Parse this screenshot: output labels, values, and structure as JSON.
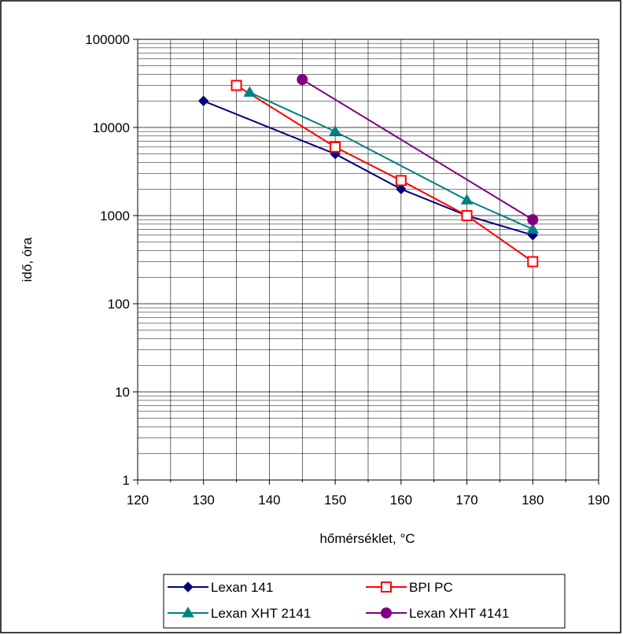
{
  "chart_data": {
    "type": "line",
    "xlabel": "hőmérséklet, °C",
    "ylabel": "idő, óra",
    "xlim": [
      120,
      190
    ],
    "x_ticks": [
      "120",
      "130",
      "140",
      "150",
      "160",
      "170",
      "180",
      "190"
    ],
    "ylim": [
      1,
      100000
    ],
    "y_scale": "log",
    "y_ticks": [
      "1",
      "10",
      "100",
      "1000",
      "10000",
      "100000"
    ],
    "grid": true,
    "legend_position": "bottom",
    "series": [
      {
        "name": "Lexan 141",
        "color": "#000080",
        "marker": "diamond-filled",
        "x": [
          130,
          150,
          160,
          170,
          180
        ],
        "y": [
          20000,
          5000,
          2000,
          1000,
          600
        ]
      },
      {
        "name": "BPI PC",
        "color": "#ff0000",
        "marker": "square-open",
        "x": [
          135,
          150,
          160,
          170,
          180
        ],
        "y": [
          30000,
          6000,
          2500,
          1000,
          300
        ]
      },
      {
        "name": "Lexan XHT 2141",
        "color": "#008080",
        "marker": "triangle-filled",
        "x": [
          137,
          150,
          170,
          180
        ],
        "y": [
          25000,
          9000,
          1500,
          700
        ]
      },
      {
        "name": "Lexan XHT 4141",
        "color": "#800080",
        "marker": "circle-filled",
        "x": [
          145,
          180
        ],
        "y": [
          35000,
          900
        ]
      }
    ]
  }
}
